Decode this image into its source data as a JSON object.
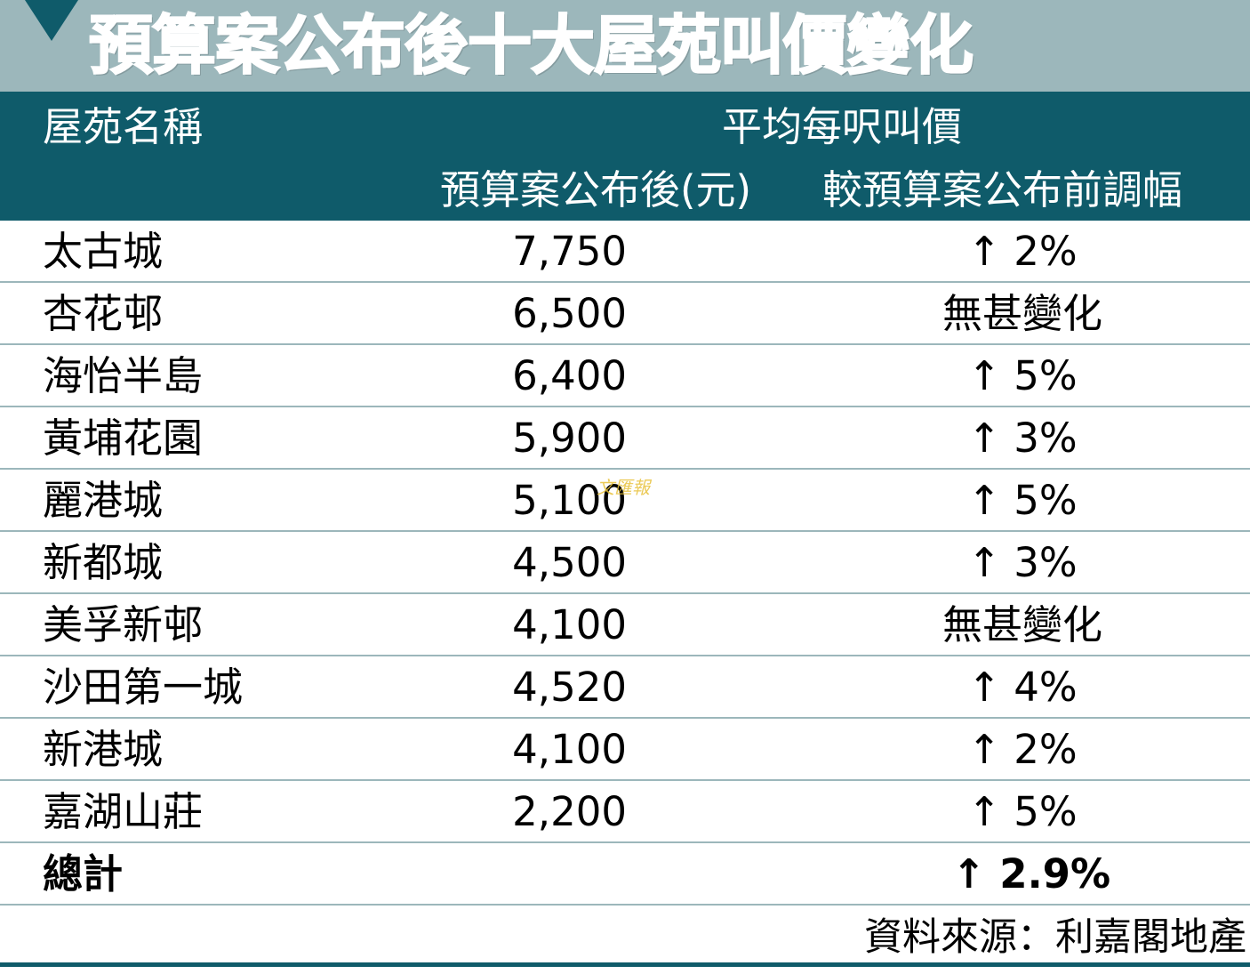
{
  "title": "預算案公布後十大屋苑叫價變化",
  "header": {
    "name_label": "屋苑名稱",
    "avg_label": "平均每呎叫價",
    "after_label": "預算案公布後(元)",
    "change_label": "較預算案公布前調幅"
  },
  "rows": [
    {
      "name": "太古城",
      "price": "7,750",
      "change": "↑ 2%"
    },
    {
      "name": "杏花邨",
      "price": "6,500",
      "change": "無甚變化"
    },
    {
      "name": "海怡半島",
      "price": "6,400",
      "change": "↑ 5%"
    },
    {
      "name": "黃埔花園",
      "price": "5,900",
      "change": "↑ 3%"
    },
    {
      "name": "麗港城",
      "price": "5,100",
      "change": "↑ 5%"
    },
    {
      "name": "新都城",
      "price": "4,500",
      "change": "↑ 3%"
    },
    {
      "name": "美孚新邨",
      "price": "4,100",
      "change": "無甚變化"
    },
    {
      "name": "沙田第一城",
      "price": "4,520",
      "change": "↑ 4%"
    },
    {
      "name": "新港城",
      "price": "4,100",
      "change": "↑ 2%"
    },
    {
      "name": "嘉湖山莊",
      "price": "2,200",
      "change": "↑ 5%"
    }
  ],
  "total": {
    "label": "總計",
    "change": "↑ 2.9%"
  },
  "source": "資料來源：利嘉閣地產",
  "watermark": "文匯報",
  "colors": {
    "title_band": "#9cb7bb",
    "header_band": "#0f5b6a",
    "row_rule": "#9cb7bb",
    "watermark": "#e8c13a"
  }
}
